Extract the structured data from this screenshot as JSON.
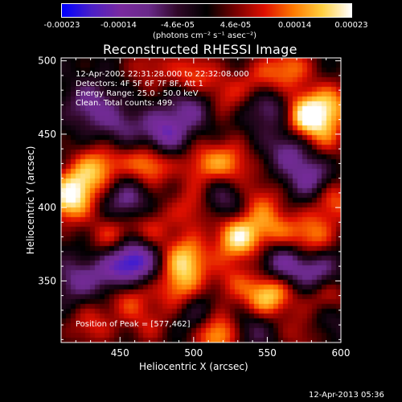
{
  "colorbar": {
    "ticks": [
      "-0.00023",
      "-0.00014",
      "-4.6e-05",
      "4.6e-05",
      "0.00014",
      "0.00023"
    ],
    "tick_values": [
      -0.00023,
      -0.00014,
      -4.6e-05,
      4.6e-05,
      0.00014,
      0.00023
    ],
    "range": [
      -0.00023,
      0.00023
    ],
    "units_label": "(photons cm⁻² s⁻¹ asec⁻²)",
    "colors": [
      "#0000ff",
      "#4b20c8",
      "#7a2aa0",
      "#6a2a8a",
      "#300828",
      "#000000",
      "#780000",
      "#e01000",
      "#ff7a00",
      "#ffd040",
      "#ffffff"
    ]
  },
  "chart_data": {
    "type": "heatmap",
    "title": "Reconstructed RHESSI Image",
    "xlabel": "Heliocentric X (arcsec)",
    "ylabel": "Heliocentric Y (arcsec)",
    "xlim": [
      410,
      600
    ],
    "ylim": [
      308,
      502
    ],
    "xticks": [
      450,
      500,
      550,
      600
    ],
    "yticks": [
      350,
      400,
      450,
      500
    ],
    "annotations": [
      "12-Apr-2002 22:31:28.000 to 22:32:08.000",
      "Detectors: 4F 5F 6F 7F 8F, Att 1",
      "Energy Range: 25.0 - 50.0 keV",
      "Clean.  Total counts: 499."
    ],
    "peak_label": "Position of Peak = [577,462]",
    "peak": [
      577,
      462
    ],
    "sources": [
      {
        "x": 577,
        "y": 462,
        "v": 1.0
      },
      {
        "x": 595,
        "y": 470,
        "v": 0.55
      },
      {
        "x": 545,
        "y": 485,
        "v": 0.45
      },
      {
        "x": 565,
        "y": 495,
        "v": 0.55
      },
      {
        "x": 500,
        "y": 490,
        "v": 0.55
      },
      {
        "x": 470,
        "y": 495,
        "v": 0.35
      },
      {
        "x": 520,
        "y": 475,
        "v": 0.4
      },
      {
        "x": 525,
        "y": 430,
        "v": 0.55
      },
      {
        "x": 505,
        "y": 430,
        "v": 0.45
      },
      {
        "x": 470,
        "y": 430,
        "v": 0.7
      },
      {
        "x": 440,
        "y": 430,
        "v": 0.5
      },
      {
        "x": 425,
        "y": 420,
        "v": 0.55
      },
      {
        "x": 415,
        "y": 405,
        "v": 0.85
      },
      {
        "x": 500,
        "y": 400,
        "v": 0.45
      },
      {
        "x": 545,
        "y": 405,
        "v": 0.4
      },
      {
        "x": 530,
        "y": 380,
        "v": 0.9
      },
      {
        "x": 555,
        "y": 385,
        "v": 0.5
      },
      {
        "x": 580,
        "y": 380,
        "v": 0.6
      },
      {
        "x": 595,
        "y": 405,
        "v": 0.55
      },
      {
        "x": 590,
        "y": 445,
        "v": 0.35
      },
      {
        "x": 470,
        "y": 385,
        "v": 0.45
      },
      {
        "x": 445,
        "y": 380,
        "v": 0.5
      },
      {
        "x": 455,
        "y": 340,
        "v": 0.5
      },
      {
        "x": 490,
        "y": 345,
        "v": 0.55
      },
      {
        "x": 495,
        "y": 365,
        "v": 0.75
      },
      {
        "x": 525,
        "y": 350,
        "v": 0.35
      },
      {
        "x": 545,
        "y": 335,
        "v": 0.5
      },
      {
        "x": 555,
        "y": 345,
        "v": 0.65
      },
      {
        "x": 590,
        "y": 340,
        "v": 0.6
      },
      {
        "x": 515,
        "y": 315,
        "v": 0.9
      },
      {
        "x": 430,
        "y": 320,
        "v": 0.4
      },
      {
        "x": 470,
        "y": 320,
        "v": 0.3
      },
      {
        "x": 575,
        "y": 315,
        "v": 0.35
      },
      {
        "x": 480,
        "y": 450,
        "v": -0.7
      },
      {
        "x": 500,
        "y": 470,
        "v": -0.5
      },
      {
        "x": 460,
        "y": 365,
        "v": -0.9
      },
      {
        "x": 445,
        "y": 355,
        "v": -0.5
      },
      {
        "x": 560,
        "y": 360,
        "v": -0.7
      },
      {
        "x": 585,
        "y": 355,
        "v": -0.6
      },
      {
        "x": 580,
        "y": 420,
        "v": -0.55
      },
      {
        "x": 550,
        "y": 470,
        "v": -0.5
      },
      {
        "x": 565,
        "y": 440,
        "v": -0.45
      },
      {
        "x": 455,
        "y": 405,
        "v": -0.5
      },
      {
        "x": 520,
        "y": 405,
        "v": -0.45
      },
      {
        "x": 430,
        "y": 470,
        "v": -0.45
      },
      {
        "x": 505,
        "y": 325,
        "v": -0.45
      },
      {
        "x": 540,
        "y": 320,
        "v": -0.4
      },
      {
        "x": 420,
        "y": 350,
        "v": -0.4
      },
      {
        "x": 450,
        "y": 455,
        "v": -0.35
      },
      {
        "x": 590,
        "y": 325,
        "v": -0.35
      }
    ]
  },
  "footer": {
    "timestamp": "12-Apr-2013 05:36"
  }
}
